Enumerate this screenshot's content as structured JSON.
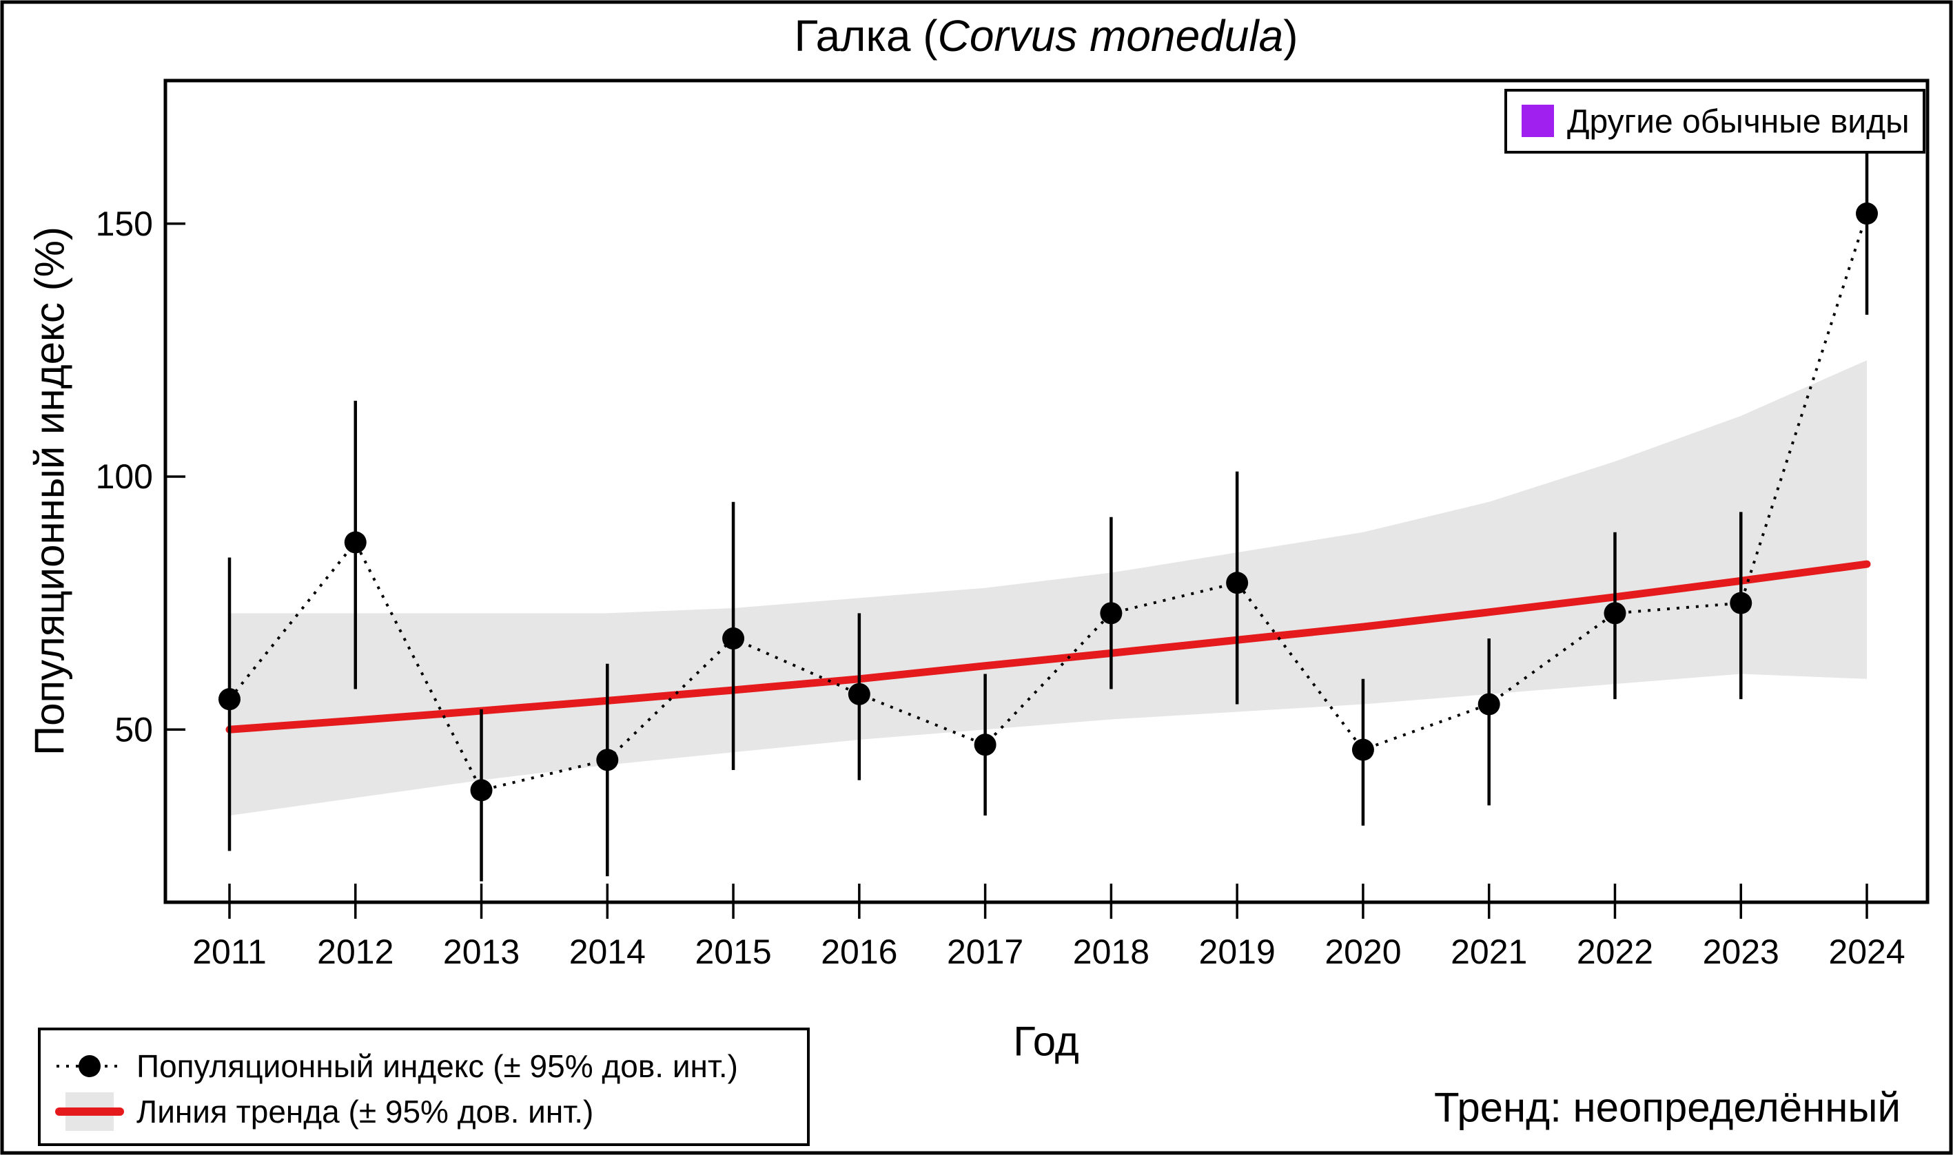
{
  "chart_data": {
    "type": "line",
    "title": {
      "prefix": "Галка (",
      "species_italic": "Corvus monedula",
      "suffix": ")"
    },
    "xlabel": "Год",
    "ylabel": "Популяционный индекс (%)",
    "x": [
      2011,
      2012,
      2013,
      2014,
      2015,
      2016,
      2017,
      2018,
      2019,
      2020,
      2021,
      2022,
      2023,
      2024
    ],
    "yticks": [
      50,
      100,
      150
    ],
    "ylim": [
      16,
      178
    ],
    "grid": "off",
    "legend_position": "bottom-left and top-right",
    "series": [
      {
        "name": "Популяционный индекс (± 95% дов. инт.)",
        "style": "points-dotted-errorbars",
        "color": "#000000",
        "values": [
          56,
          87,
          38,
          44,
          68,
          57,
          47,
          73,
          79,
          46,
          55,
          73,
          75,
          152
        ],
        "ci_low": [
          26,
          58,
          20,
          21,
          42,
          40,
          33,
          58,
          55,
          31,
          35,
          56,
          56,
          132
        ],
        "ci_high": [
          84,
          115,
          54,
          63,
          95,
          73,
          61,
          92,
          101,
          60,
          68,
          89,
          93,
          175
        ]
      },
      {
        "name": "Линия тренда (± 95% дов. инт.)",
        "style": "line-with-band",
        "color": "#e41a1c",
        "band_color": "#e6e6e6",
        "values": [
          50,
          51.8,
          53.7,
          55.7,
          57.8,
          60,
          62.6,
          65.1,
          67.7,
          70.3,
          73.2,
          76.2,
          79.4,
          82.7
        ],
        "band_low": [
          33,
          36.5,
          40,
          43,
          45.5,
          48,
          50,
          52,
          53.5,
          55,
          57,
          59,
          61,
          60
        ],
        "band_high": [
          73,
          73,
          73,
          73,
          74,
          76,
          78,
          81,
          85,
          89,
          95,
          103,
          112,
          123
        ]
      }
    ],
    "legend_top_right": {
      "label": "Другие обычные виды",
      "color": "#a020f0"
    },
    "legend_bottom": {
      "item_points": "Популяционный индекс (± 95% дов. инт.)",
      "item_trend": "Линия тренда (± 95% дов. инт.)"
    },
    "trend_note": "Тренд: неопределённый"
  }
}
